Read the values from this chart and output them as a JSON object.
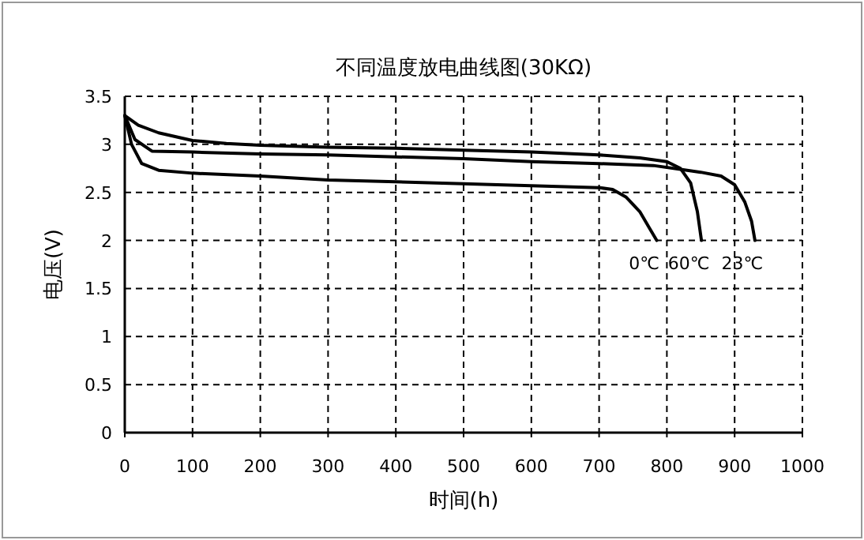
{
  "chart_data": {
    "type": "line",
    "title": "不同温度放电曲线图(30KΩ)",
    "xlabel": "时间(h)",
    "ylabel": "电压(V)",
    "xlim": [
      0,
      1000
    ],
    "xticks": [
      0,
      100,
      200,
      300,
      400,
      500,
      600,
      700,
      800,
      900,
      1000
    ],
    "ylim": [
      0,
      3.5
    ],
    "yticks": [
      0,
      0.5,
      1,
      1.5,
      2,
      2.5,
      3,
      3.5
    ],
    "grid": true,
    "marker": "none",
    "line_style": "solid",
    "series": [
      {
        "name": "0℃",
        "color": "#000000",
        "x": [
          0,
          10,
          25,
          50,
          100,
          200,
          300,
          400,
          500,
          600,
          700,
          720,
          740,
          760,
          775,
          785
        ],
        "values": [
          3.3,
          3.0,
          2.8,
          2.73,
          2.7,
          2.67,
          2.63,
          2.61,
          2.59,
          2.57,
          2.55,
          2.53,
          2.45,
          2.3,
          2.12,
          2.0
        ]
      },
      {
        "name": "60℃",
        "color": "#000000",
        "x": [
          0,
          20,
          50,
          100,
          150,
          200,
          300,
          400,
          500,
          600,
          700,
          760,
          800,
          820,
          835,
          845,
          851
        ],
        "values": [
          3.3,
          3.2,
          3.12,
          3.04,
          3.01,
          2.99,
          2.97,
          2.96,
          2.94,
          2.92,
          2.89,
          2.86,
          2.82,
          2.75,
          2.6,
          2.3,
          2.0
        ]
      },
      {
        "name": "23℃",
        "color": "#000000",
        "x": [
          0,
          15,
          40,
          100,
          200,
          300,
          400,
          500,
          600,
          700,
          780,
          820,
          850,
          880,
          900,
          915,
          925,
          930
        ],
        "values": [
          3.3,
          3.05,
          2.93,
          2.92,
          2.9,
          2.89,
          2.87,
          2.85,
          2.82,
          2.8,
          2.78,
          2.74,
          2.71,
          2.67,
          2.58,
          2.4,
          2.2,
          2.0
        ]
      }
    ]
  }
}
